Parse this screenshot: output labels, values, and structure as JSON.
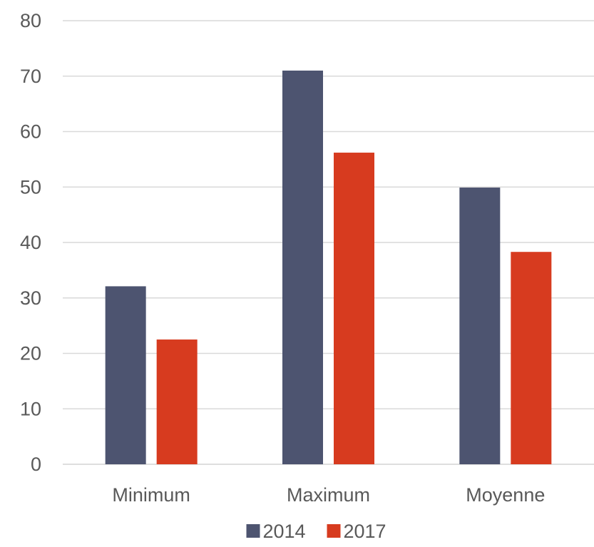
{
  "chart_data": {
    "type": "bar",
    "categories": [
      "Minimum",
      "Maximum",
      "Moyenne"
    ],
    "series": [
      {
        "name": "2014",
        "color": "#4d5470",
        "values": [
          32.1,
          71.0,
          49.9
        ]
      },
      {
        "name": "2017",
        "color": "#d73b1f",
        "values": [
          22.5,
          56.2,
          38.3
        ]
      }
    ],
    "title": "",
    "xlabel": "",
    "ylabel": "",
    "ylim": [
      0,
      80
    ],
    "yticks": [
      0,
      10,
      20,
      30,
      40,
      50,
      60,
      70,
      80
    ],
    "grid": true,
    "legend": "bottom-center"
  }
}
